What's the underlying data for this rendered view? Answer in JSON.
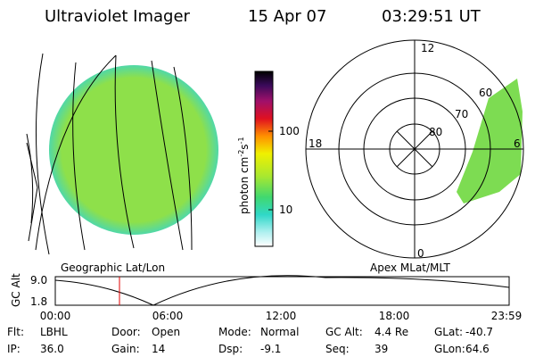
{
  "header": {
    "title": "Ultraviolet Imager",
    "date": "15 Apr 07",
    "time": "03:29:51 UT"
  },
  "colorbar": {
    "unit": {
      "base": "photon cm",
      "exp1": "-2",
      "mid": "s",
      "exp2": "-1"
    },
    "ticks": [
      "100",
      "10"
    ]
  },
  "polar": {
    "mlt_labels": [
      "12",
      "18",
      "6",
      "0"
    ],
    "mlat_labels": [
      "60",
      "70",
      "80"
    ]
  },
  "captions": {
    "left": "Geographic Lat/Lon",
    "right": "Apex MLat/MLT"
  },
  "altitude": {
    "ylabel": "GC Alt",
    "yticks": [
      "9.0",
      "1.8"
    ],
    "xticks": [
      "00:00",
      "06:00",
      "12:00",
      "18:00",
      "23:59"
    ]
  },
  "status": [
    [
      {
        "label": "Flt:",
        "value": "LBHL"
      },
      {
        "label": "Door:",
        "value": "Open"
      },
      {
        "label": "Mode:",
        "value": "Normal"
      },
      {
        "label": "GC Alt:",
        "value": "4.4 Re"
      },
      {
        "label": "GLat:",
        "value": "-40.7"
      }
    ],
    [
      {
        "label": "IP:",
        "value": "36.0"
      },
      {
        "label": "Gain:",
        "value": "14"
      },
      {
        "label": "Dsp:",
        "value": "-9.1"
      },
      {
        "label": "Seq:",
        "value": "39"
      },
      {
        "label": "GLon:",
        "value": "64.6"
      }
    ]
  ]
}
